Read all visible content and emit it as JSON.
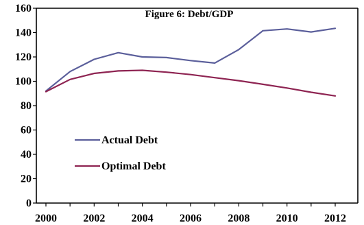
{
  "chart_data": {
    "type": "line",
    "title": "Figure 6: Debt/GDP",
    "xlabel": "",
    "ylabel": "",
    "xlim": [
      2000,
      2012
    ],
    "ylim": [
      0,
      160
    ],
    "xticks": [
      2000,
      2002,
      2004,
      2006,
      2008,
      2010,
      2012
    ],
    "yticks": [
      0,
      20,
      40,
      60,
      80,
      100,
      120,
      140,
      160
    ],
    "xtick_labels": [
      "2000",
      "2002",
      "2004",
      "2006",
      "2008",
      "2010",
      "2012"
    ],
    "ytick_labels": [
      "0",
      "20",
      "40",
      "60",
      "80",
      "100",
      "120",
      "140",
      "160"
    ],
    "grid": false,
    "legend_position": "left-center",
    "x": [
      2000,
      2001,
      2002,
      2003,
      2004,
      2005,
      2006,
      2007,
      2008,
      2009,
      2010,
      2011,
      2012
    ],
    "series": [
      {
        "name": "Actual Debt",
        "color": "#5b5f9b",
        "values": [
          92,
          108,
          118,
          123.5,
          120,
          119.5,
          117,
          115,
          126,
          141.5,
          143,
          140.5,
          143.5
        ]
      },
      {
        "name": "Optimal Debt",
        "color": "#8e2452",
        "values": [
          91.5,
          101.5,
          106.5,
          108.5,
          109,
          107.5,
          105.5,
          103,
          100.5,
          97.5,
          94.5,
          91,
          88
        ]
      }
    ]
  }
}
